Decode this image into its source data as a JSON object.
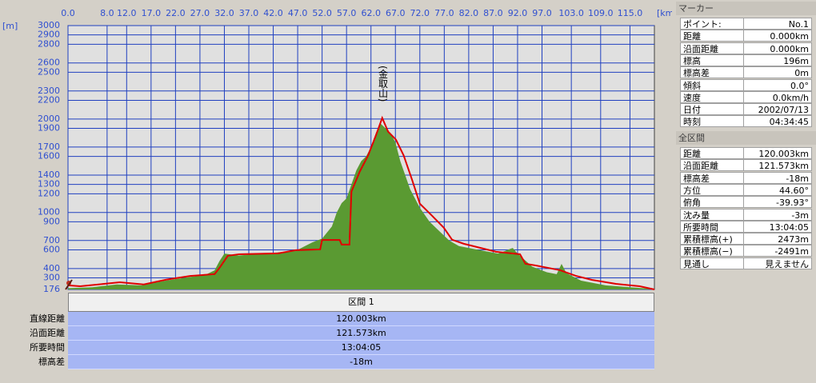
{
  "chart_data": {
    "type": "line",
    "y_unit": "[m]",
    "x_unit": "[km]",
    "annotations": [
      "(金取山)"
    ],
    "xlim": [
      0,
      120
    ],
    "ylim": [
      176,
      3000
    ],
    "xticks": [
      {
        "value": 0,
        "label": "0.0"
      },
      {
        "value": 8,
        "label": "8.0"
      },
      {
        "value": 12,
        "label": "12.0"
      },
      {
        "value": 17,
        "label": "17.0"
      },
      {
        "value": 22,
        "label": "22.0"
      },
      {
        "value": 27,
        "label": "27.0"
      },
      {
        "value": 32,
        "label": "32.0"
      },
      {
        "value": 37,
        "label": "37.0"
      },
      {
        "value": 42,
        "label": "42.0"
      },
      {
        "value": 47,
        "label": "47.0"
      },
      {
        "value": 52,
        "label": "52.0"
      },
      {
        "value": 57,
        "label": "57.0"
      },
      {
        "value": 62,
        "label": "62.0"
      },
      {
        "value": 67,
        "label": "67.0"
      },
      {
        "value": 72,
        "label": "72.0"
      },
      {
        "value": 77,
        "label": "77.0"
      },
      {
        "value": 82,
        "label": "82.0"
      },
      {
        "value": 87,
        "label": "87.0"
      },
      {
        "value": 92,
        "label": "92.0"
      },
      {
        "value": 97,
        "label": "97.0"
      },
      {
        "value": 103,
        "label": "103.0"
      },
      {
        "value": 109,
        "label": "109.0"
      },
      {
        "value": 115,
        "label": "115.0"
      }
    ],
    "yticks": [
      3000,
      2900,
      2800,
      2600,
      2500,
      2300,
      2200,
      2000,
      1900,
      1700,
      1600,
      1400,
      1300,
      1200,
      1000,
      900,
      700,
      600,
      400,
      300,
      176
    ],
    "grid": true,
    "series": [
      {
        "style": "area",
        "color": "#5a9a32",
        "x": [
          0,
          5,
          10,
          15,
          20,
          25,
          28,
          30,
          31,
          32,
          35,
          40,
          45,
          47,
          50,
          52,
          54,
          55,
          56,
          57,
          58,
          59,
          60,
          61,
          62,
          63,
          64,
          65,
          66,
          67,
          68,
          69,
          70,
          71,
          72,
          74,
          76,
          78,
          80,
          84,
          88,
          91,
          92,
          95,
          98,
          100,
          101,
          102,
          105,
          110,
          115,
          120
        ],
        "values": [
          190,
          200,
          230,
          220,
          270,
          310,
          330,
          380,
          480,
          560,
          540,
          560,
          580,
          600,
          680,
          720,
          850,
          1000,
          1100,
          1150,
          1300,
          1450,
          1550,
          1600,
          1700,
          1850,
          1950,
          1900,
          1850,
          1750,
          1550,
          1400,
          1250,
          1150,
          1050,
          900,
          800,
          700,
          640,
          600,
          560,
          620,
          560,
          420,
          360,
          340,
          450,
          350,
          270,
          220,
          200,
          180
        ]
      },
      {
        "style": "line",
        "color": "#e00000",
        "x": [
          0,
          2.5,
          7.4,
          10.6,
          15.5,
          20,
          25,
          30,
          31,
          32.7,
          35,
          43,
          46.6,
          51.6,
          52,
          55.6,
          56,
          57.6,
          58,
          59.7,
          61.4,
          63,
          64.3,
          65.5,
          67.1,
          68.7,
          70.4,
          72,
          74.5,
          76.9,
          78.6,
          81,
          84.3,
          87.6,
          92.5,
          93.6,
          95.7,
          100.7,
          103.9,
          107.2,
          112.1,
          117,
          120
        ],
        "values": [
          220,
          210,
          236,
          253,
          230,
          280,
          320,
          340,
          407,
          536,
          553,
          562,
          596,
          605,
          706,
          706,
          656,
          656,
          1223,
          1437,
          1609,
          1823,
          2012,
          1866,
          1780,
          1609,
          1351,
          1094,
          965,
          837,
          708,
          665,
          622,
          579,
          553,
          451,
          433,
          382,
          322,
          279,
          236,
          210,
          176
        ]
      }
    ]
  },
  "section_table": {
    "header": "区間 1",
    "rows": [
      [
        "直線距離",
        "120.003km"
      ],
      [
        "沿面距離",
        "121.573km"
      ],
      [
        "所要時間",
        "13:04:05"
      ],
      [
        "標高差",
        "-18m"
      ]
    ]
  },
  "marker_panel": {
    "title": "マーカー",
    "rows": [
      [
        "ポイント:",
        "No.1"
      ],
      [
        "距離",
        "0.000km"
      ],
      [
        "沿面距離",
        "0.000km"
      ],
      [
        "標高",
        "196m"
      ],
      [
        "標高差",
        "0m"
      ],
      [
        "傾斜",
        "0.0°"
      ],
      [
        "速度",
        "0.0km/h"
      ],
      [
        "日付",
        "2002/07/13"
      ],
      [
        "時刻",
        "04:34:45"
      ]
    ]
  },
  "total_panel": {
    "title": "全区間",
    "rows": [
      [
        "距離",
        "120.003km"
      ],
      [
        "沿面距離",
        "121.573km"
      ],
      [
        "標高差",
        "-18m"
      ],
      [
        "方位",
        "44.60°"
      ],
      [
        "俯角",
        "-39.93°"
      ],
      [
        "沈み量",
        "-3m"
      ],
      [
        "所要時間",
        "13:04:05"
      ],
      [
        "累積標高(+)",
        "2473m"
      ],
      [
        "累積標高(−)",
        "-2491m"
      ],
      [
        "見通し",
        "見えません"
      ]
    ]
  }
}
